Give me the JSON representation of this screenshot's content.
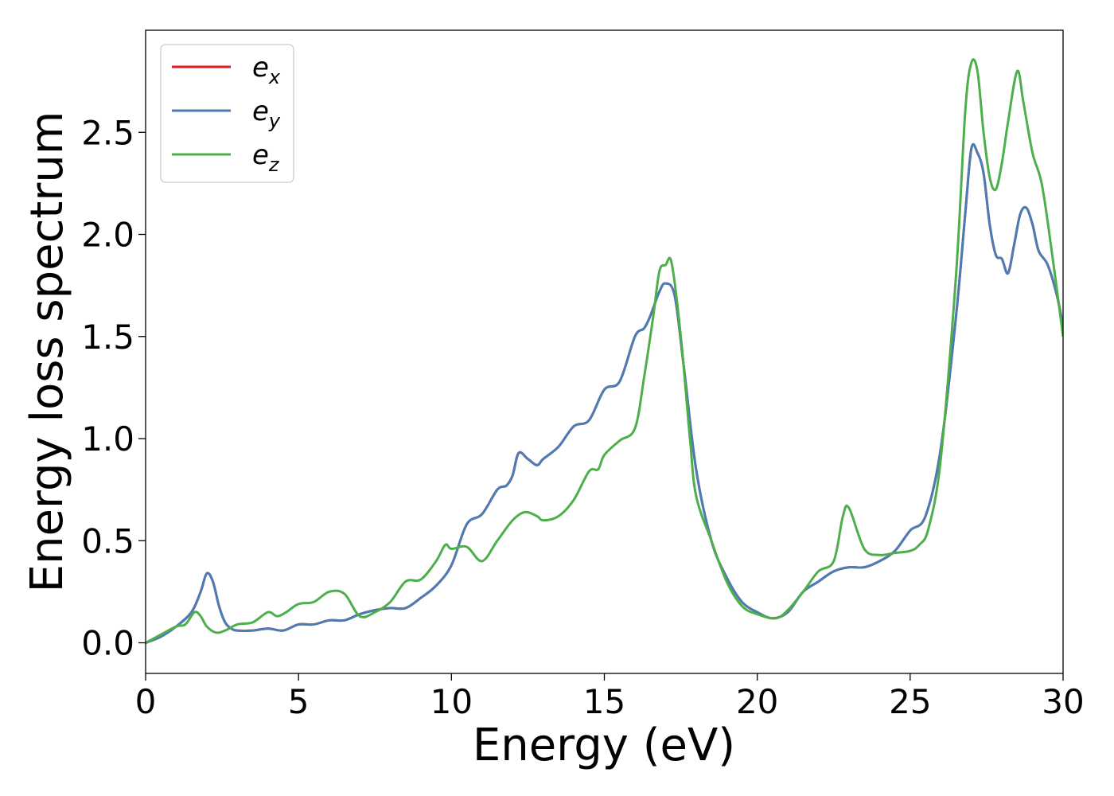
{
  "chart_data": {
    "type": "line",
    "title": "",
    "xlabel": "Energy (eV)",
    "ylabel": "Energy loss spectrum",
    "xlim": [
      0,
      30
    ],
    "ylim": [
      -0.15,
      3.0
    ],
    "xticks": [
      0,
      5,
      10,
      15,
      20,
      25,
      30
    ],
    "xtick_labels": [
      "0",
      "5",
      "10",
      "15",
      "20",
      "25",
      "30"
    ],
    "yticks": [
      0.0,
      0.5,
      1.0,
      1.5,
      2.0,
      2.5
    ],
    "ytick_labels": [
      "0.0",
      "0.5",
      "1.0",
      "1.5",
      "2.0",
      "2.5"
    ],
    "grid": false,
    "legend": "top-left",
    "series": [
      {
        "name": "e",
        "subscript": "x",
        "color": "#e41a1c",
        "x": [
          0,
          0.5,
          1.0,
          1.5,
          1.8,
          2.0,
          2.2,
          2.4,
          2.6,
          2.8,
          3.0,
          3.5,
          4.0,
          4.5,
          5.0,
          5.5,
          6.0,
          6.5,
          7.0,
          7.5,
          8.0,
          8.5,
          9.0,
          9.5,
          10.0,
          10.5,
          11.0,
          11.5,
          11.8,
          12.0,
          12.2,
          12.5,
          12.8,
          13.0,
          13.5,
          14.0,
          14.5,
          15.0,
          15.5,
          16.0,
          16.3,
          16.5,
          16.8,
          17.0,
          17.3,
          17.6,
          18.0,
          18.5,
          19.0,
          19.5,
          20.0,
          20.5,
          21.0,
          21.5,
          22.0,
          22.5,
          23.0,
          23.5,
          24.0,
          24.5,
          25.0,
          25.5,
          26.0,
          26.5,
          26.8,
          27.0,
          27.2,
          27.4,
          27.6,
          27.8,
          28.0,
          28.2,
          28.4,
          28.6,
          28.8,
          29.0,
          29.2,
          29.5,
          29.8,
          30.0
        ],
        "values": [
          0,
          0.03,
          0.08,
          0.15,
          0.25,
          0.34,
          0.3,
          0.18,
          0.1,
          0.07,
          0.06,
          0.06,
          0.07,
          0.06,
          0.09,
          0.09,
          0.11,
          0.11,
          0.14,
          0.16,
          0.17,
          0.17,
          0.22,
          0.28,
          0.38,
          0.58,
          0.63,
          0.75,
          0.77,
          0.82,
          0.93,
          0.9,
          0.87,
          0.9,
          0.96,
          1.06,
          1.09,
          1.24,
          1.28,
          1.5,
          1.54,
          1.6,
          1.72,
          1.76,
          1.7,
          1.35,
          0.85,
          0.5,
          0.32,
          0.2,
          0.15,
          0.12,
          0.15,
          0.25,
          0.3,
          0.35,
          0.37,
          0.37,
          0.4,
          0.45,
          0.55,
          0.62,
          0.95,
          1.6,
          2.1,
          2.42,
          2.4,
          2.3,
          2.05,
          1.9,
          1.88,
          1.81,
          1.95,
          2.1,
          2.13,
          2.05,
          1.92,
          1.85,
          1.7,
          1.55
        ]
      },
      {
        "name": "e",
        "subscript": "y",
        "color": "#4a7db5",
        "x": [
          0,
          0.5,
          1.0,
          1.5,
          1.8,
          2.0,
          2.2,
          2.4,
          2.6,
          2.8,
          3.0,
          3.5,
          4.0,
          4.5,
          5.0,
          5.5,
          6.0,
          6.5,
          7.0,
          7.5,
          8.0,
          8.5,
          9.0,
          9.5,
          10.0,
          10.5,
          11.0,
          11.5,
          11.8,
          12.0,
          12.2,
          12.5,
          12.8,
          13.0,
          13.5,
          14.0,
          14.5,
          15.0,
          15.5,
          16.0,
          16.3,
          16.5,
          16.8,
          17.0,
          17.3,
          17.6,
          18.0,
          18.5,
          19.0,
          19.5,
          20.0,
          20.5,
          21.0,
          21.5,
          22.0,
          22.5,
          23.0,
          23.5,
          24.0,
          24.5,
          25.0,
          25.5,
          26.0,
          26.5,
          26.8,
          27.0,
          27.2,
          27.4,
          27.6,
          27.8,
          28.0,
          28.2,
          28.4,
          28.6,
          28.8,
          29.0,
          29.2,
          29.5,
          29.8,
          30.0
        ],
        "values": [
          0,
          0.03,
          0.08,
          0.15,
          0.25,
          0.34,
          0.3,
          0.18,
          0.1,
          0.07,
          0.06,
          0.06,
          0.07,
          0.06,
          0.09,
          0.09,
          0.11,
          0.11,
          0.14,
          0.16,
          0.17,
          0.17,
          0.22,
          0.28,
          0.38,
          0.58,
          0.63,
          0.75,
          0.77,
          0.82,
          0.93,
          0.9,
          0.87,
          0.9,
          0.96,
          1.06,
          1.09,
          1.24,
          1.28,
          1.5,
          1.54,
          1.6,
          1.72,
          1.76,
          1.7,
          1.35,
          0.85,
          0.5,
          0.32,
          0.2,
          0.15,
          0.12,
          0.15,
          0.25,
          0.3,
          0.35,
          0.37,
          0.37,
          0.4,
          0.45,
          0.55,
          0.62,
          0.95,
          1.6,
          2.1,
          2.42,
          2.4,
          2.3,
          2.05,
          1.9,
          1.88,
          1.81,
          1.95,
          2.1,
          2.13,
          2.05,
          1.92,
          1.85,
          1.7,
          1.55
        ]
      },
      {
        "name": "e",
        "subscript": "z",
        "color": "#4daf4a",
        "x": [
          0,
          0.5,
          1.0,
          1.3,
          1.6,
          1.8,
          2.0,
          2.3,
          2.6,
          3.0,
          3.5,
          4.0,
          4.3,
          4.6,
          5.0,
          5.5,
          6.0,
          6.5,
          7.0,
          7.5,
          8.0,
          8.5,
          9.0,
          9.5,
          9.8,
          10.0,
          10.5,
          11.0,
          11.5,
          12.0,
          12.4,
          12.8,
          13.0,
          13.5,
          14.0,
          14.5,
          14.8,
          15.0,
          15.5,
          16.0,
          16.3,
          16.6,
          16.8,
          17.0,
          17.2,
          17.5,
          17.8,
          18.0,
          18.5,
          19.0,
          19.5,
          20.0,
          20.6,
          21.0,
          21.5,
          22.0,
          22.5,
          22.8,
          23.0,
          23.5,
          24.0,
          24.5,
          25.0,
          25.3,
          25.6,
          26.0,
          26.5,
          26.8,
          27.0,
          27.2,
          27.4,
          27.6,
          27.8,
          28.0,
          28.2,
          28.5,
          28.7,
          29.0,
          29.3,
          29.6,
          30.0
        ],
        "values": [
          0,
          0.04,
          0.08,
          0.09,
          0.15,
          0.13,
          0.08,
          0.05,
          0.06,
          0.09,
          0.1,
          0.15,
          0.13,
          0.15,
          0.19,
          0.2,
          0.25,
          0.24,
          0.13,
          0.15,
          0.2,
          0.3,
          0.31,
          0.4,
          0.48,
          0.46,
          0.47,
          0.4,
          0.5,
          0.6,
          0.64,
          0.62,
          0.6,
          0.62,
          0.7,
          0.84,
          0.85,
          0.92,
          0.99,
          1.05,
          1.3,
          1.6,
          1.82,
          1.85,
          1.86,
          1.5,
          1.0,
          0.72,
          0.5,
          0.3,
          0.18,
          0.14,
          0.12,
          0.16,
          0.25,
          0.35,
          0.4,
          0.62,
          0.66,
          0.46,
          0.43,
          0.44,
          0.45,
          0.48,
          0.56,
          0.9,
          1.8,
          2.6,
          2.84,
          2.8,
          2.5,
          2.28,
          2.22,
          2.35,
          2.55,
          2.8,
          2.65,
          2.4,
          2.25,
          1.95,
          1.5
        ]
      }
    ]
  }
}
